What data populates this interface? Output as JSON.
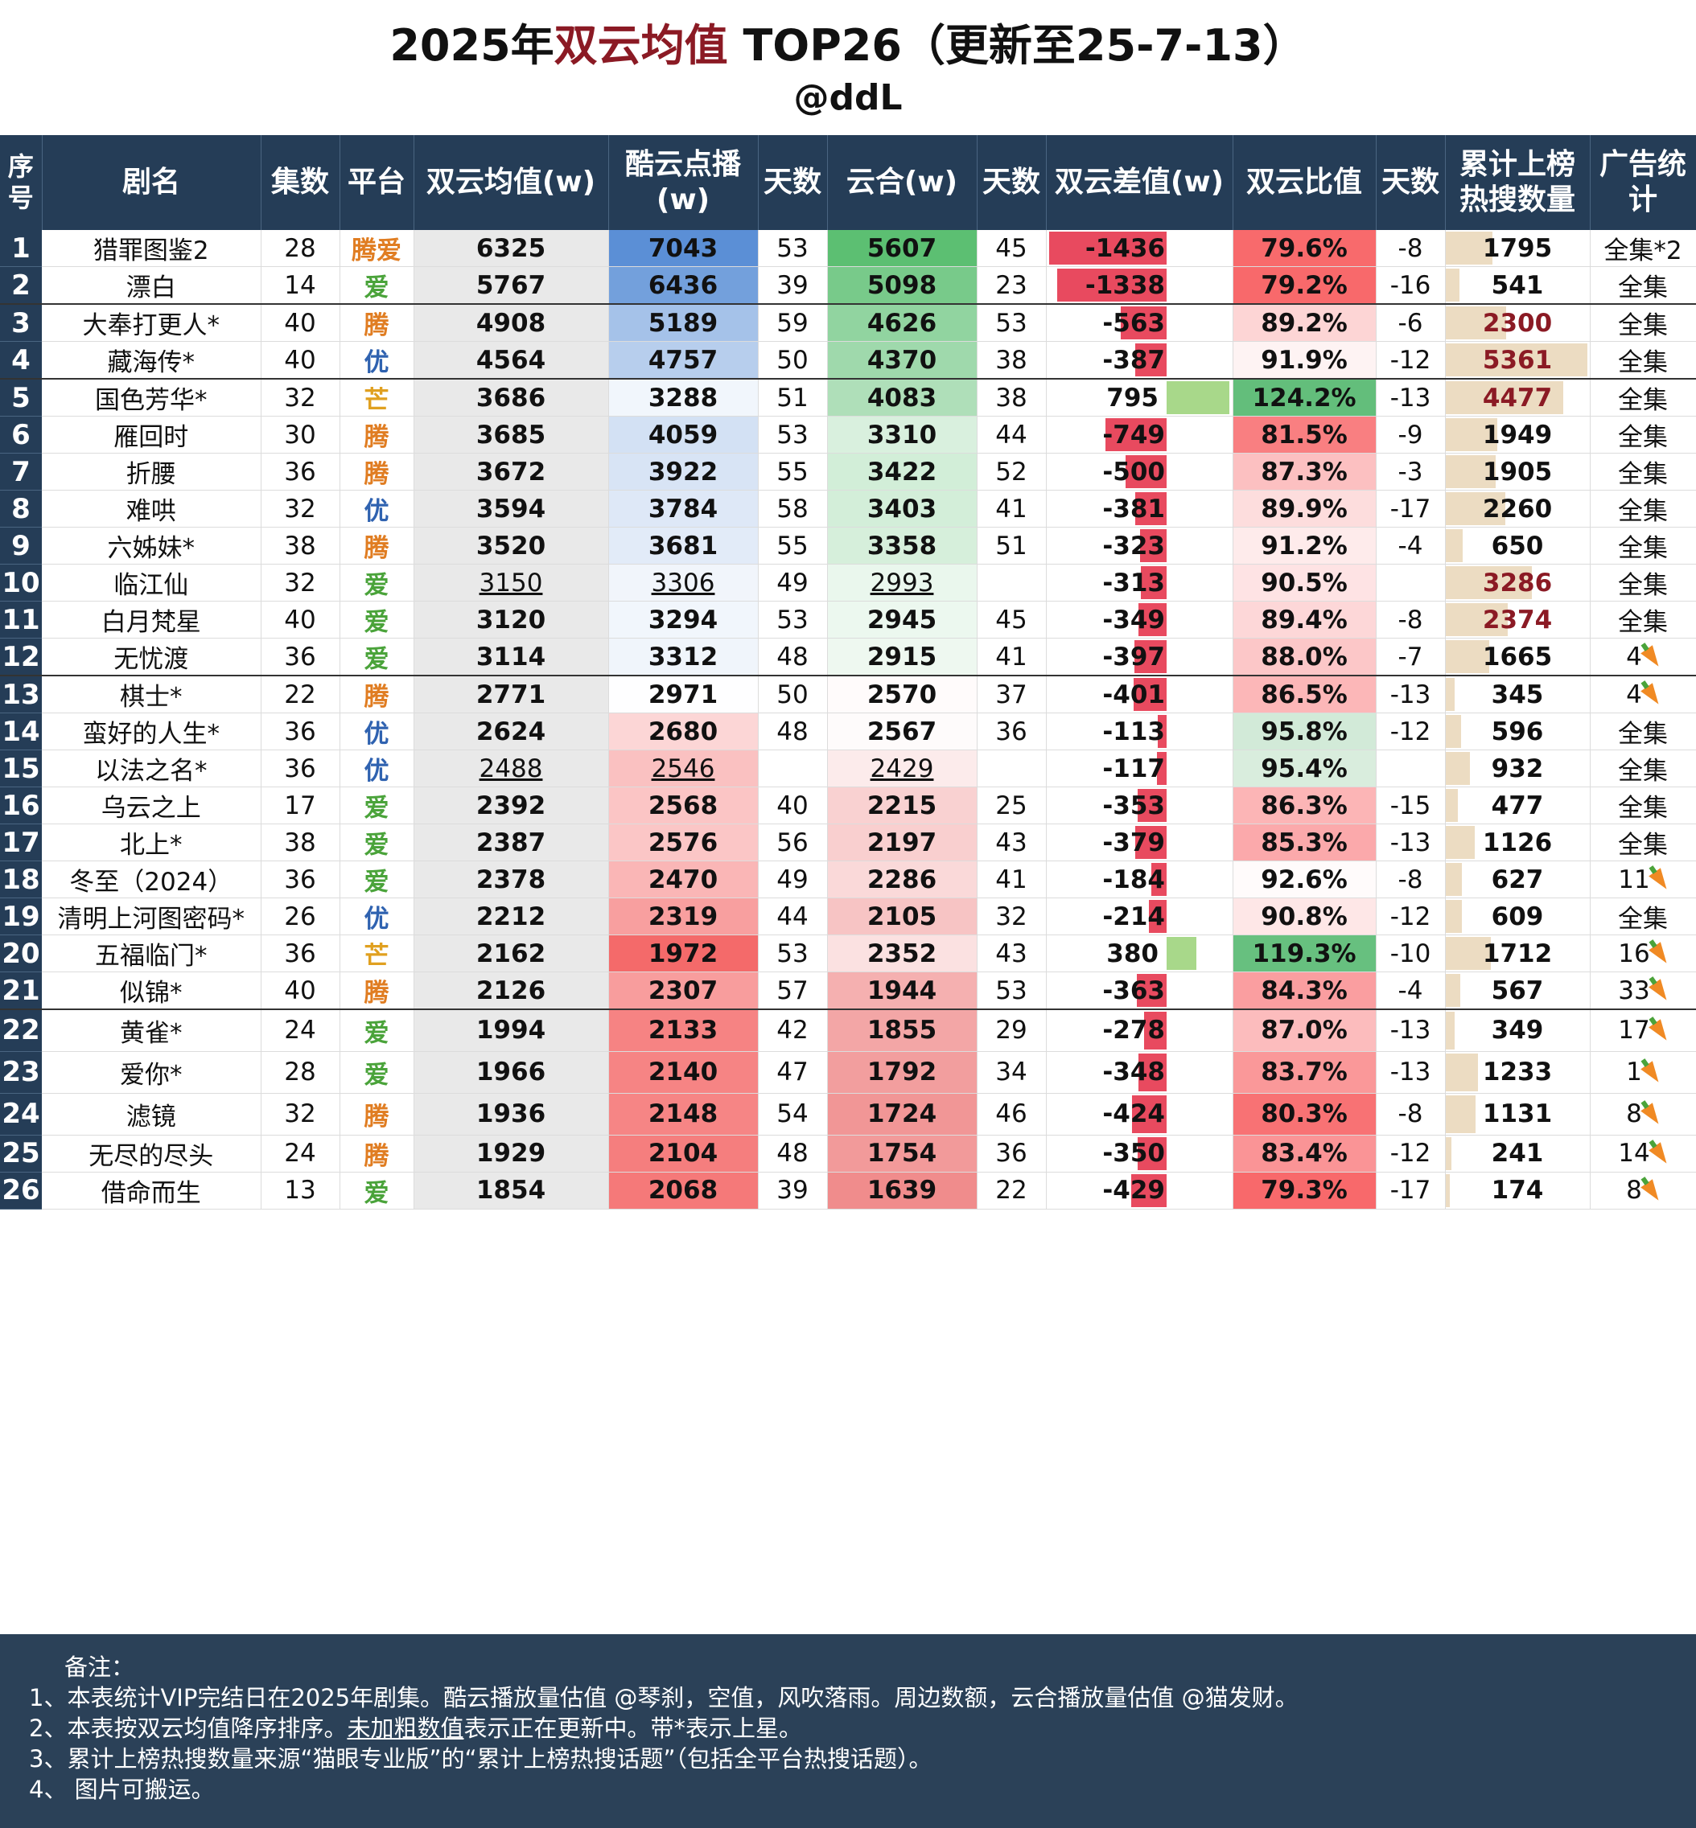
{
  "title_prefix": "2025年",
  "title_highlight": "双云均值",
  "title_suffix": " TOP26（更新至25-7-13）",
  "subtitle": "@ddL",
  "headers": {
    "idx": "序号",
    "name": "剧名",
    "eps": "集数",
    "platform": "平台",
    "avg": "双云均值(w)",
    "ky": "酷云点播(w)",
    "ky_days": "天数",
    "yh": "云合(w)",
    "yh_days": "天数",
    "diff": "双云差值(w)",
    "ratio": "双云比值",
    "ratio_days": "天数",
    "hot": "累计上榜热搜数量",
    "ad": "广告统计"
  },
  "colors": {
    "header_bg": "#253d57",
    "title_highlight": "#8b1a24",
    "hot_bar": "#ecdcc2",
    "ky_high": "#5b8fd6",
    "ky_low": "#f46a6a",
    "yh_high": "#5cbf72",
    "yh_low": "#f08c8c",
    "diff_neg": "#e84a5f",
    "diff_pos": "#a8d88a",
    "ratio_high": "#63be7b",
    "ratio_low": "#f8696b"
  },
  "chart_data": {
    "type": "table",
    "columns": [
      "序号",
      "剧名",
      "集数",
      "平台",
      "双云均值(w)",
      "酷云点播(w)",
      "天数",
      "云合(w)",
      "天数",
      "双云差值(w)",
      "双云比值",
      "天数",
      "累计上榜热搜数量",
      "广告统计"
    ],
    "rows": [
      {
        "idx": "1",
        "name": "猎罪图鉴2",
        "eps": "28",
        "platform": "腾爱",
        "avg": "6325",
        "ky": "7043",
        "ky_days": "53",
        "yh": "5607",
        "yh_days": "45",
        "diff": "-1436",
        "ratio": "79.6%",
        "ratio_days": "-8",
        "hot": "1795",
        "ad": "全集*2",
        "updating": false
      },
      {
        "idx": "2",
        "name": "漂白",
        "eps": "14",
        "platform": "爱",
        "avg": "5767",
        "ky": "6436",
        "ky_days": "39",
        "yh": "5098",
        "yh_days": "23",
        "diff": "-1338",
        "ratio": "79.2%",
        "ratio_days": "-16",
        "hot": "541",
        "ad": "全集",
        "updating": false
      },
      {
        "idx": "3",
        "name": "大奉打更人*",
        "eps": "40",
        "platform": "腾",
        "avg": "4908",
        "ky": "5189",
        "ky_days": "59",
        "yh": "4626",
        "yh_days": "53",
        "diff": "-563",
        "ratio": "89.2%",
        "ratio_days": "-6",
        "hot": "2300",
        "ad": "全集",
        "updating": false,
        "hot_red": true
      },
      {
        "idx": "4",
        "name": "藏海传*",
        "eps": "40",
        "platform": "优",
        "avg": "4564",
        "ky": "4757",
        "ky_days": "50",
        "yh": "4370",
        "yh_days": "38",
        "diff": "-387",
        "ratio": "91.9%",
        "ratio_days": "-12",
        "hot": "5361",
        "ad": "全集",
        "updating": false,
        "hot_red": true
      },
      {
        "idx": "5",
        "name": "国色芳华*",
        "eps": "32",
        "platform": "芒",
        "avg": "3686",
        "ky": "3288",
        "ky_days": "51",
        "yh": "4083",
        "yh_days": "38",
        "diff": "795",
        "ratio": "124.2%",
        "ratio_days": "-13",
        "hot": "4477",
        "ad": "全集",
        "updating": false,
        "hot_red": true
      },
      {
        "idx": "6",
        "name": "雁回时",
        "eps": "30",
        "platform": "腾",
        "avg": "3685",
        "ky": "4059",
        "ky_days": "53",
        "yh": "3310",
        "yh_days": "44",
        "diff": "-749",
        "ratio": "81.5%",
        "ratio_days": "-9",
        "hot": "1949",
        "ad": "全集",
        "updating": false
      },
      {
        "idx": "7",
        "name": "折腰",
        "eps": "36",
        "platform": "腾",
        "avg": "3672",
        "ky": "3922",
        "ky_days": "55",
        "yh": "3422",
        "yh_days": "52",
        "diff": "-500",
        "ratio": "87.3%",
        "ratio_days": "-3",
        "hot": "1905",
        "ad": "全集",
        "updating": false
      },
      {
        "idx": "8",
        "name": "难哄",
        "eps": "32",
        "platform": "优",
        "avg": "3594",
        "ky": "3784",
        "ky_days": "58",
        "yh": "3403",
        "yh_days": "41",
        "diff": "-381",
        "ratio": "89.9%",
        "ratio_days": "-17",
        "hot": "2260",
        "ad": "全集",
        "updating": false
      },
      {
        "idx": "9",
        "name": "六姊妹*",
        "eps": "38",
        "platform": "腾",
        "avg": "3520",
        "ky": "3681",
        "ky_days": "55",
        "yh": "3358",
        "yh_days": "51",
        "diff": "-323",
        "ratio": "91.2%",
        "ratio_days": "-4",
        "hot": "650",
        "ad": "全集",
        "updating": false
      },
      {
        "idx": "10",
        "name": "临江仙",
        "eps": "32",
        "platform": "爱",
        "avg": "3150",
        "ky": "3306",
        "ky_days": "49",
        "yh": "2993",
        "yh_days": "",
        "diff": "-313",
        "ratio": "90.5%",
        "ratio_days": "",
        "hot": "3286",
        "ad": "全集",
        "updating": true,
        "hot_red": true
      },
      {
        "idx": "11",
        "name": "白月梵星",
        "eps": "40",
        "platform": "爱",
        "avg": "3120",
        "ky": "3294",
        "ky_days": "53",
        "yh": "2945",
        "yh_days": "45",
        "diff": "-349",
        "ratio": "89.4%",
        "ratio_days": "-8",
        "hot": "2374",
        "ad": "全集",
        "updating": false,
        "hot_red": true
      },
      {
        "idx": "12",
        "name": "无忧渡",
        "eps": "36",
        "platform": "爱",
        "avg": "3114",
        "ky": "3312",
        "ky_days": "48",
        "yh": "2915",
        "yh_days": "41",
        "diff": "-397",
        "ratio": "88.0%",
        "ratio_days": "-7",
        "hot": "1665",
        "ad": "4",
        "ad_carrot": true,
        "updating": false
      },
      {
        "idx": "13",
        "name": "棋士*",
        "eps": "22",
        "platform": "腾",
        "avg": "2771",
        "ky": "2971",
        "ky_days": "50",
        "yh": "2570",
        "yh_days": "37",
        "diff": "-401",
        "ratio": "86.5%",
        "ratio_days": "-13",
        "hot": "345",
        "ad": "4",
        "ad_carrot": true,
        "updating": false
      },
      {
        "idx": "14",
        "name": "蛮好的人生*",
        "eps": "36",
        "platform": "优",
        "avg": "2624",
        "ky": "2680",
        "ky_days": "48",
        "yh": "2567",
        "yh_days": "36",
        "diff": "-113",
        "ratio": "95.8%",
        "ratio_days": "-12",
        "hot": "596",
        "ad": "全集",
        "updating": false
      },
      {
        "idx": "15",
        "name": "以法之名*",
        "eps": "36",
        "platform": "优",
        "avg": "2488",
        "ky": "2546",
        "ky_days": "",
        "yh": "2429",
        "yh_days": "",
        "diff": "-117",
        "ratio": "95.4%",
        "ratio_days": "",
        "hot": "932",
        "ad": "全集",
        "updating": true
      },
      {
        "idx": "16",
        "name": "乌云之上",
        "eps": "17",
        "platform": "爱",
        "avg": "2392",
        "ky": "2568",
        "ky_days": "40",
        "yh": "2215",
        "yh_days": "25",
        "diff": "-353",
        "ratio": "86.3%",
        "ratio_days": "-15",
        "hot": "477",
        "ad": "全集",
        "updating": false
      },
      {
        "idx": "17",
        "name": "北上*",
        "eps": "38",
        "platform": "爱",
        "avg": "2387",
        "ky": "2576",
        "ky_days": "56",
        "yh": "2197",
        "yh_days": "43",
        "diff": "-379",
        "ratio": "85.3%",
        "ratio_days": "-13",
        "hot": "1126",
        "ad": "全集",
        "updating": false
      },
      {
        "idx": "18",
        "name": "冬至（2024）",
        "eps": "36",
        "platform": "爱",
        "avg": "2378",
        "ky": "2470",
        "ky_days": "49",
        "yh": "2286",
        "yh_days": "41",
        "diff": "-184",
        "ratio": "92.6%",
        "ratio_days": "-8",
        "hot": "627",
        "ad": "11",
        "ad_carrot": true,
        "updating": false
      },
      {
        "idx": "19",
        "name": "清明上河图密码*",
        "eps": "26",
        "platform": "优",
        "avg": "2212",
        "ky": "2319",
        "ky_days": "44",
        "yh": "2105",
        "yh_days": "32",
        "diff": "-214",
        "ratio": "90.8%",
        "ratio_days": "-12",
        "hot": "609",
        "ad": "全集",
        "updating": false
      },
      {
        "idx": "20",
        "name": "五福临门*",
        "eps": "36",
        "platform": "芒",
        "avg": "2162",
        "ky": "1972",
        "ky_days": "53",
        "yh": "2352",
        "yh_days": "43",
        "diff": "380",
        "ratio": "119.3%",
        "ratio_days": "-10",
        "hot": "1712",
        "ad": "16",
        "ad_carrot": true,
        "updating": false
      },
      {
        "idx": "21",
        "name": "似锦*",
        "eps": "40",
        "platform": "腾",
        "avg": "2126",
        "ky": "2307",
        "ky_days": "57",
        "yh": "1944",
        "yh_days": "53",
        "diff": "-363",
        "ratio": "84.3%",
        "ratio_days": "-4",
        "hot": "567",
        "ad": "33",
        "ad_carrot": true,
        "updating": false
      },
      {
        "idx": "22",
        "name": "黄雀*",
        "eps": "24",
        "platform": "爱",
        "avg": "1994",
        "ky": "2133",
        "ky_days": "42",
        "yh": "1855",
        "yh_days": "29",
        "diff": "-278",
        "ratio": "87.0%",
        "ratio_days": "-13",
        "hot": "349",
        "ad": "17",
        "ad_carrot": true,
        "updating": false
      },
      {
        "idx": "23",
        "name": "爱你*",
        "eps": "28",
        "platform": "爱",
        "avg": "1966",
        "ky": "2140",
        "ky_days": "47",
        "yh": "1792",
        "yh_days": "34",
        "diff": "-348",
        "ratio": "83.7%",
        "ratio_days": "-13",
        "hot": "1233",
        "ad": "1",
        "ad_carrot": true,
        "updating": false
      },
      {
        "idx": "24",
        "name": "滤镜",
        "eps": "32",
        "platform": "腾",
        "avg": "1936",
        "ky": "2148",
        "ky_days": "54",
        "yh": "1724",
        "yh_days": "46",
        "diff": "-424",
        "ratio": "80.3%",
        "ratio_days": "-8",
        "hot": "1131",
        "ad": "8",
        "ad_carrot": true,
        "updating": false
      },
      {
        "idx": "25",
        "name": "无尽的尽头",
        "eps": "24",
        "platform": "腾",
        "avg": "1929",
        "ky": "2104",
        "ky_days": "48",
        "yh": "1754",
        "yh_days": "36",
        "diff": "-350",
        "ratio": "83.4%",
        "ratio_days": "-12",
        "hot": "241",
        "ad": "14",
        "ad_carrot": true,
        "updating": false
      },
      {
        "idx": "26",
        "name": "借命而生",
        "eps": "13",
        "platform": "爱",
        "avg": "1854",
        "ky": "2068",
        "ky_days": "39",
        "yh": "1639",
        "yh_days": "22",
        "diff": "-429",
        "ratio": "79.3%",
        "ratio_days": "-17",
        "hot": "174",
        "ad": "8",
        "ad_carrot": true,
        "updating": false
      }
    ]
  },
  "notes": {
    "heading": "备注：",
    "line1": "1、本表统计VIP完结日在2025年剧集。酷云播放量估值 @琴刹，空值，风吹落雨。周边数额，云合播放量估值 @猫发财。",
    "line2_a": "2、本表按双云均值降序排序。",
    "line2_u": "未加粗数值",
    "line2_b": "表示正在更新中。带*表示上星。",
    "line3": "3、累计上榜热搜数量来源“猫眼专业版”的“累计上榜热搜话题”（包括全平台热搜话题）。",
    "line4": "4、 图片可搬运。"
  }
}
